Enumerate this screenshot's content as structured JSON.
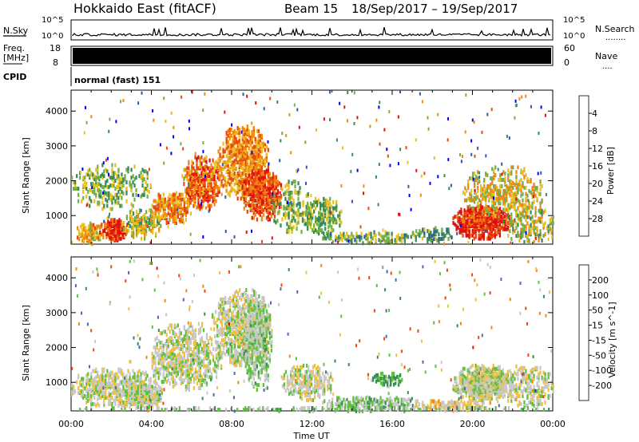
{
  "header": {
    "title": "Hokkaido East (fitACF)",
    "beam": "Beam 15",
    "date_range": "18/Sep/2017 – 19/Sep/2017"
  },
  "nsky_panel": {
    "left_label": "N.Sky",
    "right_label": "N.Search",
    "right_dots": "........",
    "tick_top": "10^5",
    "tick_bottom": "10^0",
    "right_tick_top": "10^5",
    "right_tick_bottom": "10^0"
  },
  "freq_panel": {
    "label_line1": "Freq.",
    "label_line2": "[MHz]",
    "tick_top": "18",
    "tick_bottom": "8",
    "right_label": "Nave",
    "right_dots": "....",
    "right_tick_top": "60",
    "right_tick_bottom": "0"
  },
  "cpid": {
    "label": "CPID",
    "value": "normal (fast) 151"
  },
  "x_axis": {
    "label": "Time UT",
    "tick_labels": [
      "00:00",
      "04:00",
      "08:00",
      "12:00",
      "16:00",
      "20:00",
      "00:00"
    ]
  },
  "chart_data": [
    {
      "type": "heatmap",
      "name": "power",
      "ylabel": "Slant Range [km]",
      "xlim_hours": [
        0,
        24
      ],
      "ylim_km": [
        180,
        4600
      ],
      "y_ticks": [
        "1000",
        "2000",
        "3000",
        "4000"
      ],
      "colorbar": {
        "label": "Power [dB]",
        "tick_labels": [
          "4",
          "8",
          "12",
          "16",
          "20",
          "24",
          "28"
        ],
        "colors": [
          "#0000ff",
          "#2e5aa8",
          "#3a8a5a",
          "#74b04a",
          "#e8c020",
          "#f08a10",
          "#e84a10",
          "#e01010"
        ],
        "range": [
          0,
          32
        ]
      },
      "regions": [
        {
          "t": [
            0.2,
            1.6
          ],
          "r": [
            200,
            800
          ],
          "v": 20,
          "d": 0.6
        },
        {
          "t": [
            1.4,
            2.8
          ],
          "r": [
            300,
            900
          ],
          "v": 28,
          "d": 0.85
        },
        {
          "t": [
            2.5,
            4.5
          ],
          "r": [
            350,
            1200
          ],
          "v": 17,
          "d": 0.5
        },
        {
          "t": [
            4.0,
            6.0
          ],
          "r": [
            800,
            1700
          ],
          "v": 22,
          "d": 0.6
        },
        {
          "t": [
            5.5,
            7.5
          ],
          "r": [
            1200,
            2700
          ],
          "v": 24,
          "d": 0.6
        },
        {
          "t": [
            7.3,
            9.8
          ],
          "r": [
            1500,
            3600
          ],
          "v": 22,
          "d": 0.55
        },
        {
          "t": [
            8.5,
            10.5
          ],
          "r": [
            900,
            2300
          ],
          "v": 26,
          "d": 0.7
        },
        {
          "t": [
            10.0,
            12.0
          ],
          "r": [
            500,
            2000
          ],
          "v": 14,
          "d": 0.25
        },
        {
          "t": [
            11.5,
            13.5
          ],
          "r": [
            500,
            1500
          ],
          "v": 14,
          "d": 0.45
        },
        {
          "t": [
            12.5,
            17.5
          ],
          "r": [
            220,
            550
          ],
          "v": 13,
          "d": 0.45
        },
        {
          "t": [
            17.0,
            19.0
          ],
          "r": [
            250,
            700
          ],
          "v": 11,
          "d": 0.4
        },
        {
          "t": [
            19.0,
            21.8
          ],
          "r": [
            350,
            1300
          ],
          "v": 28,
          "d": 0.8
        },
        {
          "t": [
            19.5,
            23.5
          ],
          "r": [
            1000,
            2400
          ],
          "v": 18,
          "d": 0.35
        },
        {
          "t": [
            0.0,
            4.0
          ],
          "r": [
            1200,
            2500
          ],
          "v": 14,
          "d": 0.25
        },
        {
          "t": [
            21.5,
            24.0
          ],
          "r": [
            250,
            1300
          ],
          "v": 16,
          "d": 0.35
        }
      ]
    },
    {
      "type": "heatmap",
      "name": "velocity",
      "ylabel": "Slant Range [km]",
      "xlim_hours": [
        0,
        24
      ],
      "ylim_km": [
        180,
        4600
      ],
      "y_ticks": [
        "1000",
        "2000",
        "3000",
        "4000"
      ],
      "colorbar": {
        "label": "Velocity [m s^-1]",
        "tick_labels": [
          "200",
          "100",
          "50",
          "15",
          "-15",
          "-50",
          "-100",
          "-200"
        ],
        "colors": [
          "#2030c0",
          "#4a6ab0",
          "#3a8a5a",
          "#60c040",
          "#c8c8c8",
          "#f0c040",
          "#f08a10",
          "#e84a10",
          "#e01010"
        ],
        "range": [
          250,
          -250
        ]
      },
      "regions": [
        {
          "t": [
            0.0,
            4.5
          ],
          "r": [
            300,
            1400
          ],
          "v": 0,
          "d": 0.5
        },
        {
          "t": [
            2.5,
            4.5
          ],
          "r": [
            300,
            900
          ],
          "v": 0,
          "d": 0.8
        },
        {
          "t": [
            4.0,
            7.5
          ],
          "r": [
            800,
            2700
          ],
          "v": 0,
          "d": 0.45
        },
        {
          "t": [
            7.0,
            10.0
          ],
          "r": [
            1500,
            3700
          ],
          "v": 0,
          "d": 0.55
        },
        {
          "t": [
            8.5,
            10.0
          ],
          "r": [
            800,
            3400
          ],
          "v": 30,
          "d": 0.45
        },
        {
          "t": [
            10.5,
            13.0
          ],
          "r": [
            500,
            1500
          ],
          "v": 0,
          "d": 0.5
        },
        {
          "t": [
            12.5,
            17.5
          ],
          "r": [
            200,
            600
          ],
          "v": 35,
          "d": 0.5
        },
        {
          "t": [
            15.0,
            16.5
          ],
          "r": [
            900,
            1300
          ],
          "v": 80,
          "d": 0.6
        },
        {
          "t": [
            17.0,
            21.0
          ],
          "r": [
            200,
            500
          ],
          "v": -40,
          "d": 0.5
        },
        {
          "t": [
            19.0,
            22.0
          ],
          "r": [
            500,
            1500
          ],
          "v": 0,
          "d": 0.8
        },
        {
          "t": [
            21.5,
            24.0
          ],
          "r": [
            300,
            1500
          ],
          "v": 0,
          "d": 0.4
        },
        {
          "t": [
            0.0,
            24.0
          ],
          "r": [
            180,
            300
          ],
          "v": 40,
          "d": 0.35
        }
      ]
    }
  ]
}
